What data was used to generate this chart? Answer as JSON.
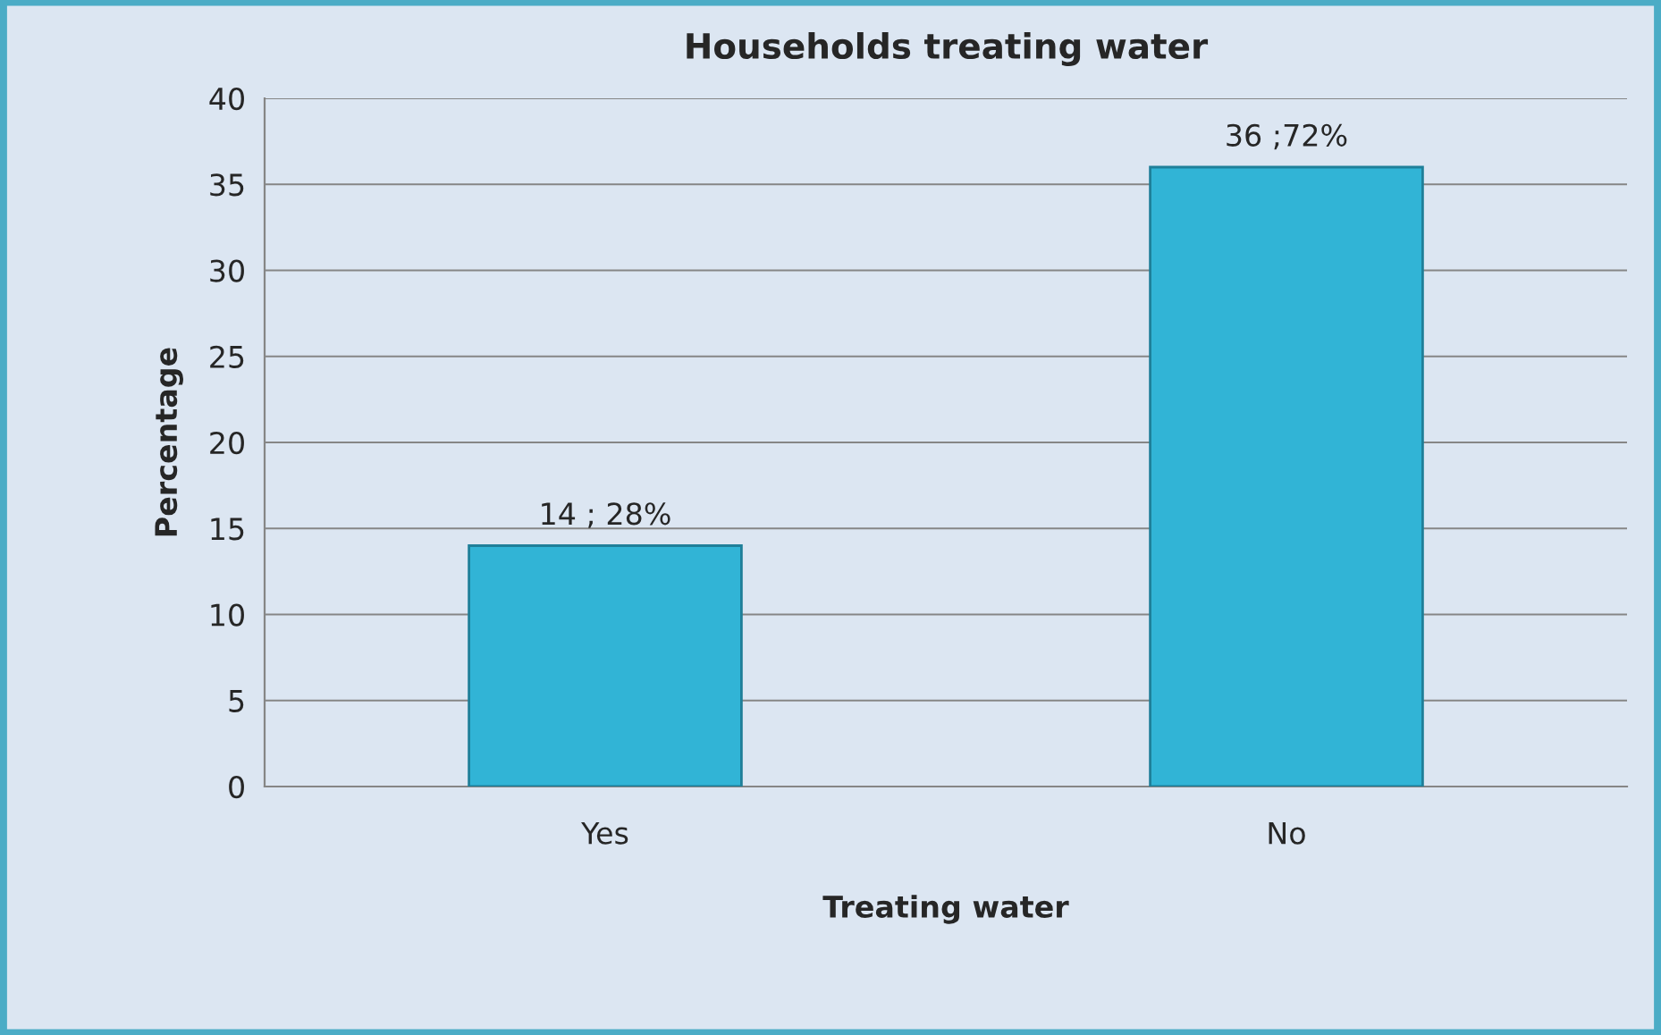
{
  "chart_data": {
    "type": "bar",
    "title": "Households treating water",
    "xlabel": "Treating water",
    "ylabel": "Percentage",
    "categories": [
      "Yes",
      "No"
    ],
    "values": [
      14,
      36
    ],
    "value_labels": [
      "14 ; 28%",
      "36 ;72%"
    ],
    "color": "#31b4d6",
    "ylim": [
      0,
      40
    ],
    "yticks": [
      0,
      5,
      10,
      15,
      20,
      25,
      30,
      35,
      40
    ],
    "grid": "y"
  }
}
